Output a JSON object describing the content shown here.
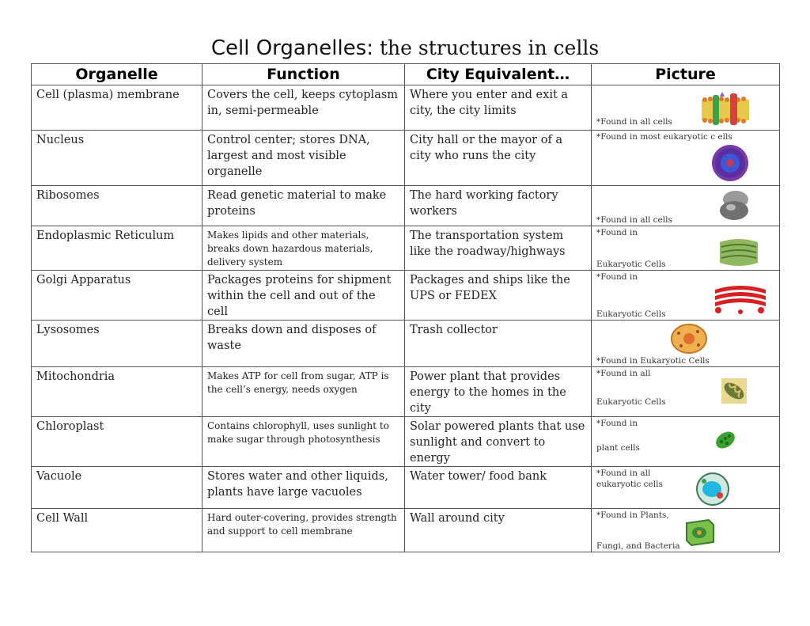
{
  "title": {
    "main": "Cell Organelles:",
    "sub": " the structures in cells"
  },
  "headers": [
    "Organelle",
    "Function",
    "City Equivalent…",
    "Picture"
  ],
  "rows": [
    {
      "organelle": "Cell (plasma) membrane",
      "function": "Covers the cell, keeps cytoplasm in, semi-permeable",
      "city": "Where you enter and exit a city, the city limits",
      "notes": [
        "*Found in all cells"
      ],
      "icon": "plasma-membrane-icon"
    },
    {
      "organelle": "Nucleus",
      "function": "Control center; stores DNA, largest and most visible organelle",
      "city": "City hall or the mayor of a city who runs the city",
      "notes": [
        "*Found in most eukaryotic c ells"
      ],
      "icon": "nucleus-icon"
    },
    {
      "organelle": "Ribosomes",
      "function": "Read genetic material to make proteins",
      "city": "The hard working factory workers",
      "notes": [
        "*Found in all cells"
      ],
      "icon": "ribosome-icon"
    },
    {
      "organelle": "Endoplasmic Reticulum",
      "function": "Makes lipids and other materials, breaks down hazardous materials, delivery system",
      "city": "The transportation system like the roadway/highways",
      "notes": [
        "*Found in",
        "Eukaryotic Cells"
      ],
      "icon": "er-icon"
    },
    {
      "organelle": "Golgi Apparatus",
      "function": "Packages proteins for shipment within the cell and out of the cell",
      "city": "Packages and ships like the UPS or FEDEX",
      "notes": [
        "*Found in",
        "Eukaryotic Cells"
      ],
      "icon": "golgi-icon"
    },
    {
      "organelle": "Lysosomes",
      "function": "Breaks down and disposes of waste",
      "city": "Trash collector",
      "notes": [
        "*Found in Eukaryotic Cells"
      ],
      "icon": "lysosome-icon"
    },
    {
      "organelle": "Mitochondria",
      "function": "Makes ATP for cell from sugar, ATP is the cell’s energy, needs oxygen",
      "city": "Power plant that provides energy to the homes in the city",
      "notes": [
        "*Found in all",
        "Eukaryotic Cells"
      ],
      "icon": "mitochondria-icon"
    },
    {
      "organelle": "Chloroplast",
      "function": "Contains chlorophyll, uses sunlight to make sugar through photosynthesis",
      "city": "Solar powered plants that use sunlight and convert to energy",
      "notes": [
        "*Found in",
        "plant cells"
      ],
      "icon": "chloroplast-icon"
    },
    {
      "organelle": "Vacuole",
      "function": "Stores water and other liquids, plants have large vacuoles",
      "city": "Water tower/ food bank",
      "notes": [
        "*Found in all",
        "eukaryotic cells"
      ],
      "icon": "vacuole-icon"
    },
    {
      "organelle": "Cell Wall",
      "function": "Hard outer-covering, provides strength and support to cell membrane",
      "city": "Wall around city",
      "notes": [
        "*Found in Plants,",
        "Fungi, and Bacteria"
      ],
      "icon": "cell-wall-icon"
    }
  ]
}
